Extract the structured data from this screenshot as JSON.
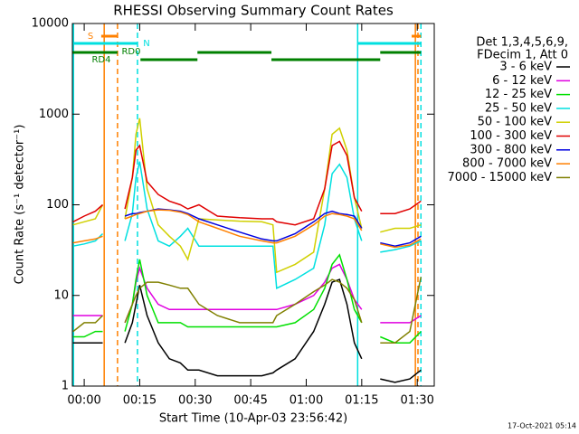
{
  "chart_data": {
    "type": "line",
    "title": "RHESSI Observing Summary Count Rates",
    "xlabel": "Start Time (10-Apr-03 23:56:42)",
    "ylabel": "Count Rate (s⁻¹ detector⁻¹)",
    "footer": "17-Oct-2021 05:14",
    "legend_header": [
      "Det 1,3,4,5,6,9,",
      "FDecim 1, Att 0"
    ],
    "yscale": "log",
    "xlim": [
      -3.2,
      94.6
    ],
    "ylim": [
      1,
      10000
    ],
    "xticks": [
      {
        "value": 0,
        "label": "00:00"
      },
      {
        "value": 15,
        "label": "00:15"
      },
      {
        "value": 30,
        "label": "00:30"
      },
      {
        "value": 45,
        "label": "00:45"
      },
      {
        "value": 60,
        "label": "01:00"
      },
      {
        "value": 75,
        "label": "01:15"
      },
      {
        "value": 90,
        "label": "01:30"
      }
    ],
    "yticks": [
      1,
      10,
      100,
      1000,
      10000
    ],
    "x": [
      -3,
      0,
      3,
      5,
      7,
      11,
      13,
      14,
      15,
      17,
      20,
      23,
      26,
      28,
      31,
      36,
      42,
      48,
      51,
      52,
      57,
      62,
      65,
      67,
      69,
      71,
      73,
      75,
      78,
      80,
      84,
      88,
      91
    ],
    "series": [
      {
        "name": "3 - 6 keV",
        "color": "#000000",
        "values": [
          3,
          3,
          3,
          3,
          null,
          3,
          5,
          8,
          13,
          6,
          3,
          2,
          1.8,
          1.5,
          1.5,
          1.3,
          1.3,
          1.3,
          1.4,
          1.5,
          2,
          4,
          8,
          14,
          15,
          8,
          3,
          2,
          null,
          1.2,
          1.1,
          1.2,
          1.5
        ]
      },
      {
        "name": "6 - 12 keV",
        "color": "#e000e0",
        "values": [
          6,
          6,
          6,
          6,
          null,
          5,
          8,
          14,
          20,
          12,
          8,
          7,
          7,
          7,
          7,
          7,
          7,
          7,
          7,
          7,
          8,
          10,
          14,
          20,
          22,
          15,
          9,
          7,
          null,
          5,
          5,
          5,
          6
        ]
      },
      {
        "name": "12 - 25 keV",
        "color": "#00e000",
        "values": [
          3.5,
          3.5,
          4,
          4,
          null,
          4,
          8,
          15,
          25,
          10,
          5,
          5,
          5,
          4.5,
          4.5,
          4.5,
          4.5,
          4.5,
          4.5,
          4.5,
          5,
          7,
          12,
          22,
          28,
          15,
          7,
          5,
          null,
          3.5,
          3,
          3,
          4
        ]
      },
      {
        "name": "25 - 50 keV",
        "color": "#00e0e0",
        "values": [
          35,
          37,
          40,
          48,
          null,
          40,
          80,
          200,
          300,
          90,
          40,
          35,
          45,
          55,
          35,
          35,
          35,
          35,
          35,
          12,
          15,
          20,
          60,
          220,
          280,
          200,
          70,
          40,
          null,
          30,
          32,
          35,
          40
        ]
      },
      {
        "name": "50 - 100 keV",
        "color": "#d0d000",
        "values": [
          60,
          65,
          70,
          100,
          null,
          70,
          200,
          600,
          900,
          150,
          60,
          45,
          35,
          25,
          70,
          68,
          66,
          65,
          60,
          18,
          22,
          30,
          150,
          600,
          700,
          400,
          120,
          55,
          null,
          50,
          55,
          55,
          60
        ]
      },
      {
        "name": "100 - 300 keV",
        "color": "#e00000",
        "values": [
          65,
          75,
          85,
          100,
          null,
          90,
          200,
          400,
          450,
          180,
          130,
          110,
          100,
          90,
          100,
          75,
          72,
          70,
          70,
          65,
          60,
          70,
          150,
          450,
          500,
          350,
          120,
          85,
          null,
          80,
          80,
          90,
          110
        ]
      },
      {
        "name": "300 - 800 keV",
        "color": "#0000e0",
        "values": [
          null,
          null,
          null,
          null,
          null,
          75,
          80,
          80,
          82,
          85,
          90,
          88,
          85,
          80,
          70,
          60,
          50,
          42,
          40,
          40,
          48,
          65,
          80,
          85,
          80,
          78,
          75,
          55,
          null,
          38,
          35,
          38,
          45
        ]
      },
      {
        "name": "800 - 7000 keV",
        "color": "#ff8000",
        "values": [
          38,
          40,
          42,
          45,
          null,
          70,
          75,
          78,
          80,
          85,
          88,
          87,
          83,
          78,
          65,
          55,
          45,
          40,
          38,
          38,
          45,
          60,
          75,
          80,
          78,
          75,
          70,
          52,
          null,
          37,
          34,
          36,
          42
        ]
      },
      {
        "name": "7000 - 15000 keV",
        "color": "#808000",
        "values": [
          4,
          5,
          5,
          6,
          null,
          5,
          8,
          10,
          12,
          14,
          14,
          13,
          12,
          12,
          8,
          6,
          5,
          5,
          5,
          6,
          8,
          11,
          13,
          15,
          14,
          12,
          9,
          5,
          null,
          3,
          3,
          4,
          16
        ]
      }
    ],
    "flags": [
      {
        "label": "S",
        "color": "#ff8000",
        "segments": [
          [
            4.6,
            9.0
          ],
          [
            88.5,
            91
          ]
        ]
      },
      {
        "label": "N",
        "color": "#00e0e0",
        "segments": [
          [
            -3.2,
            14.4
          ],
          [
            73.9,
            91
          ]
        ]
      },
      {
        "label": "RD0",
        "color": "#008000",
        "segments": [
          [
            -3.2,
            9.0
          ],
          [
            30.6,
            50.6
          ],
          [
            80,
            91
          ]
        ]
      },
      {
        "label": "RD4",
        "color": "#008000",
        "segments": [
          [
            15.2,
            30.6
          ],
          [
            50.6,
            80
          ]
        ]
      }
    ],
    "events": [
      {
        "x": -2.9,
        "color": "#00e0e0",
        "dashed": false
      },
      {
        "x": 5.4,
        "color": "#ff8000",
        "dashed": false
      },
      {
        "x": 9.0,
        "color": "#ff8000",
        "dashed": true
      },
      {
        "x": 14.4,
        "color": "#00e0e0",
        "dashed": true
      },
      {
        "x": 73.9,
        "color": "#00e0e0",
        "dashed": false
      },
      {
        "x": 89.5,
        "color": "#ff8000",
        "dashed": false
      },
      {
        "x": 90.2,
        "color": "#ff8000",
        "dashed": true
      },
      {
        "x": 91,
        "color": "#00e0e0",
        "dashed": true
      }
    ]
  }
}
